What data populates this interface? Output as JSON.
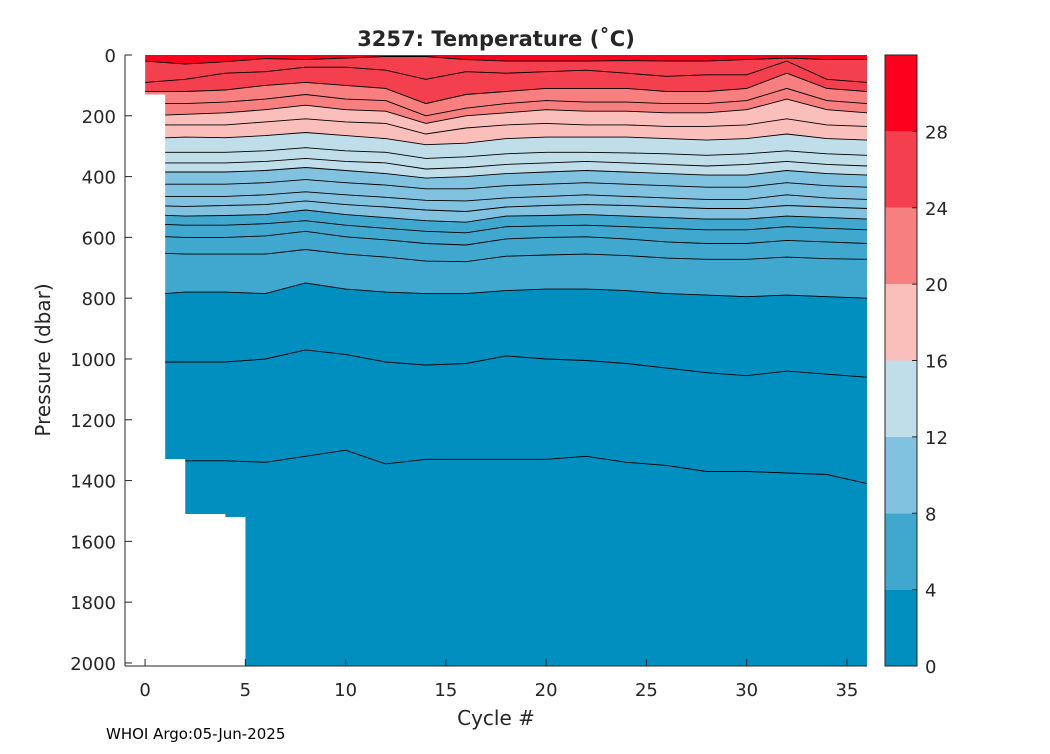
{
  "chart_data": {
    "type": "heatmap",
    "title": "3257:  Temperature (˚C)",
    "xlabel": "Cycle #",
    "ylabel": "Pressure (dbar)",
    "xlim": [
      -1,
      36
    ],
    "ylim": [
      2010,
      0
    ],
    "y_reversed": true,
    "x_ticks": [
      0,
      5,
      10,
      15,
      20,
      25,
      30,
      35
    ],
    "y_ticks": [
      0,
      200,
      400,
      600,
      800,
      1000,
      1200,
      1400,
      1600,
      1800,
      2000
    ],
    "colorbar": {
      "range": [
        0,
        32
      ],
      "ticks": [
        0,
        4,
        8,
        12,
        16,
        20,
        24,
        28
      ],
      "bands": [
        {
          "from": 0,
          "to": 4,
          "color": "#008fbf"
        },
        {
          "from": 4,
          "to": 8,
          "color": "#40a8cf"
        },
        {
          "from": 8,
          "to": 12,
          "color": "#80c2df"
        },
        {
          "from": 12,
          "to": 16,
          "color": "#c0ddea"
        },
        {
          "from": 16,
          "to": 20,
          "color": "#fbbfbb"
        },
        {
          "from": 20,
          "to": 24,
          "color": "#f77f7f"
        },
        {
          "from": 24,
          "to": 28,
          "color": "#f33f4e"
        },
        {
          "from": 28,
          "to": 32,
          "color": "#fc001e"
        }
      ]
    },
    "profile_max_depth": [
      {
        "cycle": 0,
        "depth": 130
      },
      {
        "cycle": 1,
        "depth": 1330
      },
      {
        "cycle": 2,
        "depth": 1510
      },
      {
        "cycle": 3,
        "depth": 1510
      },
      {
        "cycle": 4,
        "depth": 1520
      },
      {
        "cycle": 5,
        "depth": 2010
      }
    ],
    "isotherm_levels": [
      28,
      26,
      24,
      22,
      20,
      18,
      16,
      14,
      13,
      12,
      11,
      10,
      9,
      8,
      7,
      6,
      5,
      4,
      3,
      2
    ],
    "isotherm_cycles": [
      0,
      2,
      4,
      6,
      8,
      10,
      12,
      14,
      16,
      18,
      20,
      22,
      24,
      26,
      28,
      30,
      32,
      34,
      36
    ],
    "isotherm_depths": {
      "28": [
        20,
        30,
        22,
        12,
        15,
        10,
        5,
        5,
        15,
        20,
        20,
        20,
        18,
        20,
        20,
        15,
        10,
        15,
        15
      ],
      "26": [
        90,
        80,
        60,
        55,
        40,
        40,
        50,
        80,
        55,
        60,
        55,
        50,
        60,
        70,
        65,
        65,
        20,
        80,
        90
      ],
      "24": [
        120,
        120,
        115,
        100,
        90,
        100,
        110,
        160,
        130,
        120,
        110,
        110,
        110,
        120,
        120,
        110,
        60,
        110,
        120
      ],
      "22": [
        160,
        160,
        155,
        145,
        130,
        145,
        150,
        200,
        175,
        160,
        150,
        155,
        155,
        160,
        160,
        150,
        110,
        150,
        160
      ],
      "20": [
        200,
        195,
        190,
        180,
        165,
        180,
        185,
        225,
        200,
        190,
        180,
        185,
        185,
        190,
        190,
        180,
        145,
        180,
        190
      ],
      "18": [
        230,
        230,
        230,
        220,
        210,
        220,
        225,
        260,
        240,
        230,
        225,
        230,
        230,
        235,
        235,
        230,
        210,
        230,
        235
      ],
      "16": [
        275,
        270,
        272,
        265,
        255,
        265,
        275,
        295,
        290,
        275,
        270,
        270,
        270,
        275,
        280,
        275,
        260,
        275,
        280
      ],
      "14": [
        320,
        320,
        320,
        315,
        305,
        315,
        320,
        340,
        335,
        325,
        320,
        320,
        322,
        325,
        330,
        325,
        315,
        325,
        330
      ],
      "13": [
        355,
        355,
        355,
        350,
        340,
        350,
        355,
        375,
        370,
        360,
        355,
        350,
        355,
        360,
        365,
        360,
        350,
        360,
        365
      ],
      "12": [
        385,
        385,
        385,
        380,
        370,
        380,
        390,
        405,
        400,
        390,
        385,
        380,
        385,
        390,
        395,
        395,
        380,
        390,
        395
      ],
      "11": [
        425,
        425,
        425,
        420,
        410,
        420,
        428,
        440,
        440,
        430,
        425,
        420,
        425,
        430,
        435,
        435,
        420,
        430,
        435
      ],
      "10": [
        465,
        465,
        465,
        460,
        450,
        460,
        468,
        478,
        480,
        470,
        465,
        460,
        465,
        470,
        475,
        475,
        460,
        470,
        475
      ],
      "9": [
        495,
        498,
        495,
        492,
        480,
        492,
        500,
        510,
        515,
        500,
        495,
        492,
        495,
        500,
        505,
        505,
        495,
        500,
        505
      ],
      "8": [
        525,
        530,
        528,
        525,
        510,
        525,
        535,
        545,
        550,
        530,
        528,
        525,
        530,
        535,
        540,
        540,
        530,
        535,
        540
      ],
      "7": [
        555,
        560,
        560,
        555,
        545,
        560,
        570,
        580,
        585,
        565,
        562,
        560,
        565,
        570,
        575,
        575,
        565,
        570,
        575
      ],
      "6": [
        595,
        600,
        600,
        595,
        580,
        598,
        608,
        620,
        625,
        605,
        600,
        598,
        605,
        615,
        620,
        620,
        610,
        615,
        620
      ],
      "5": [
        650,
        655,
        655,
        655,
        640,
        655,
        665,
        678,
        680,
        662,
        658,
        655,
        660,
        668,
        672,
        672,
        665,
        670,
        672
      ],
      "4": [
        790,
        780,
        780,
        785,
        750,
        770,
        780,
        785,
        785,
        775,
        770,
        770,
        775,
        785,
        790,
        795,
        790,
        795,
        800
      ],
      "3": [
        1010,
        1010,
        1010,
        1000,
        970,
        985,
        1010,
        1020,
        1015,
        990,
        1000,
        1005,
        1015,
        1030,
        1045,
        1055,
        1040,
        1050,
        1060
      ],
      "2": [
        1335,
        1335,
        1335,
        1340,
        1320,
        1300,
        1345,
        1330,
        1330,
        1330,
        1330,
        1320,
        1340,
        1350,
        1370,
        1370,
        1375,
        1380,
        1410
      ]
    }
  },
  "footer": "WHOI Argo:05-Jun-2025"
}
